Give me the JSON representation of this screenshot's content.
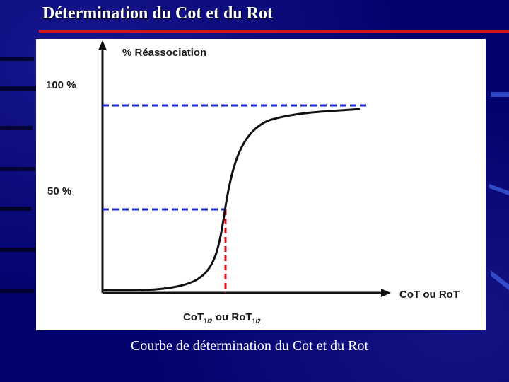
{
  "slide": {
    "title": "Détermination du Cot et du Rot",
    "caption": "Courbe de détermination du Cot et du Rot"
  },
  "diagram": {
    "y_axis_label": "% Réassociation",
    "x_axis_label": "CoT ou RoT",
    "level_100": "100 %",
    "level_50": "50 %",
    "half_label_main_1": "CoT",
    "half_label_sub_1": "1/2",
    "half_label_joiner": " ou ",
    "half_label_main_2": "RoT",
    "half_label_sub_2": "1/2"
  },
  "colors": {
    "background": "#02026e",
    "accent_rule": "#d01818",
    "guide_blue": "#1a2ad0",
    "guide_red": "#e01010",
    "curve": "#111111"
  }
}
